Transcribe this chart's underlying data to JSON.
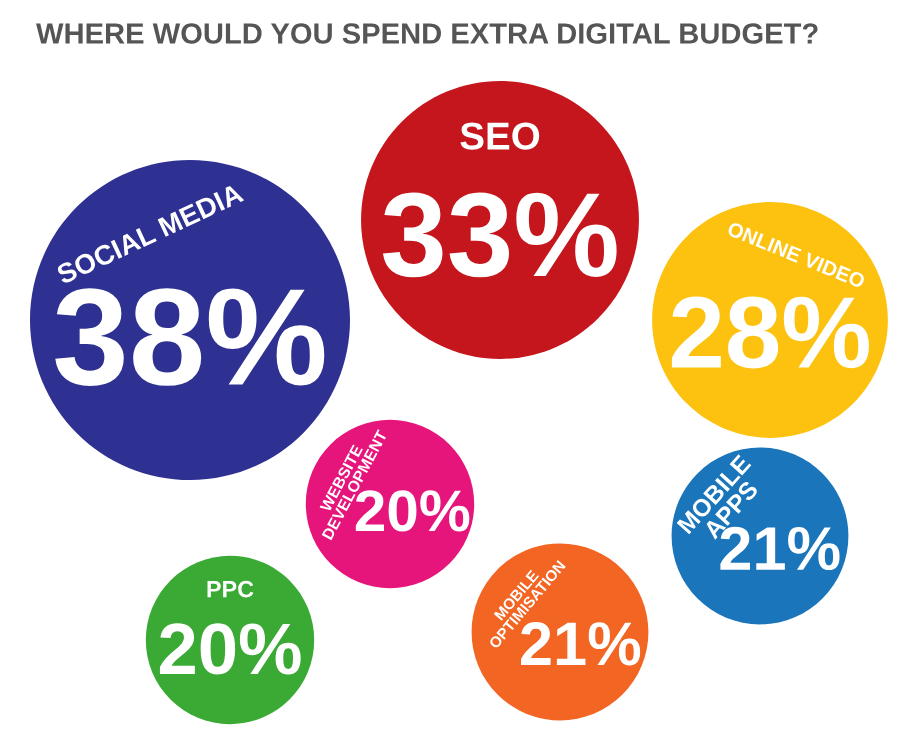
{
  "chart_data": {
    "type": "other",
    "title": "WHERE WOULD YOU SPEND EXTRA DIGITAL BUDGET?",
    "categories": [
      "SOCIAL MEDIA",
      "SEO",
      "ONLINE VIDEO",
      "WEBSITE DEVELOPMENT",
      "MOBILE APPS",
      "PPC",
      "MOBILE OPTIMISATION"
    ],
    "values": [
      38,
      33,
      28,
      20,
      21,
      20,
      21
    ],
    "value_labels": [
      "38%",
      "33%",
      "28%",
      "20%",
      "21%",
      "20%",
      "21%"
    ],
    "colors": [
      "#2e3192",
      "#c4161c",
      "#fdc20f",
      "#e6157b",
      "#1a75bb",
      "#3aaa35",
      "#f26522"
    ]
  }
}
